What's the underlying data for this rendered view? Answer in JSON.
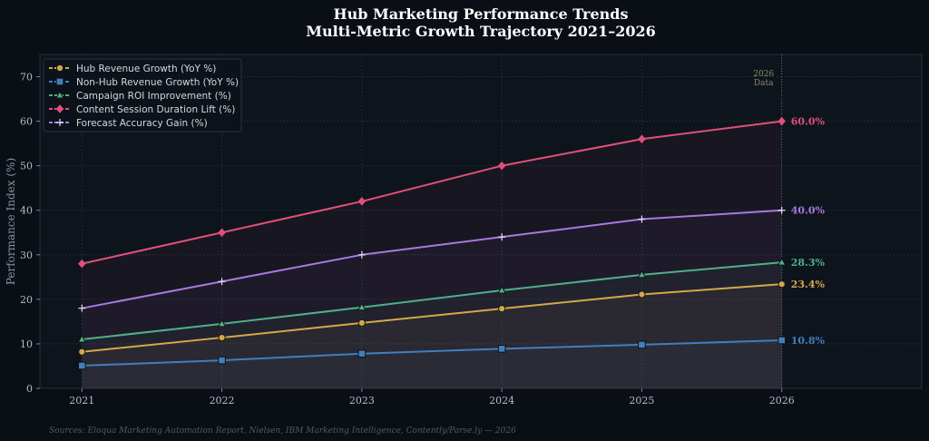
{
  "chart_data": {
    "type": "line",
    "title": "Hub Marketing Performance Trends",
    "subtitle": "Multi-Metric Growth Trajectory 2021–2026",
    "ylabel": "Performance Index (%)",
    "xlabel": "",
    "x": [
      2021,
      2022,
      2023,
      2024,
      2025,
      2026
    ],
    "xlim": [
      2020.7,
      2027.0
    ],
    "ylim": [
      0,
      75
    ],
    "yticks": [
      0,
      10,
      20,
      30,
      40,
      50,
      60,
      70
    ],
    "grid": true,
    "legend_position": "top-left",
    "annotation": "2026\nData",
    "source": "Sources: Eloqua Marketing Automation Report, Nielsen, IBM Marketing Intelligence, Contently/Parse.ly — 2026",
    "series": [
      {
        "name": "Hub Revenue Growth (YoY %)",
        "values": [
          8.2,
          11.4,
          14.7,
          17.9,
          21.1,
          23.4
        ],
        "color": "#d4a94a",
        "marker": "circle",
        "dash": "dashed",
        "end_label": "23.4%"
      },
      {
        "name": "Non-Hub Revenue Growth (YoY %)",
        "values": [
          5.1,
          6.3,
          7.8,
          8.9,
          9.8,
          10.8
        ],
        "color": "#3f7fc0",
        "marker": "square",
        "dash": "dashed",
        "end_label": "10.8%"
      },
      {
        "name": "Campaign ROI Improvement (%)",
        "values": [
          11.0,
          14.5,
          18.2,
          22.0,
          25.5,
          28.3
        ],
        "color": "#4fb08a",
        "marker": "triangle",
        "dash": "dashed",
        "end_label": "28.3%"
      },
      {
        "name": "Content Session Duration Lift (%)",
        "values": [
          28.0,
          35.0,
          42.0,
          50.0,
          56.0,
          60.0
        ],
        "color": "#e0507a",
        "marker": "diamond",
        "dash": "dashed",
        "end_label": "60.0%"
      },
      {
        "name": "Forecast Accuracy Gain (%)",
        "values": [
          18.0,
          24.0,
          30.0,
          34.0,
          38.0,
          40.0
        ],
        "color": "#a779e0",
        "marker": "plus",
        "dash": "dashed",
        "end_label": "40.0%"
      }
    ]
  }
}
